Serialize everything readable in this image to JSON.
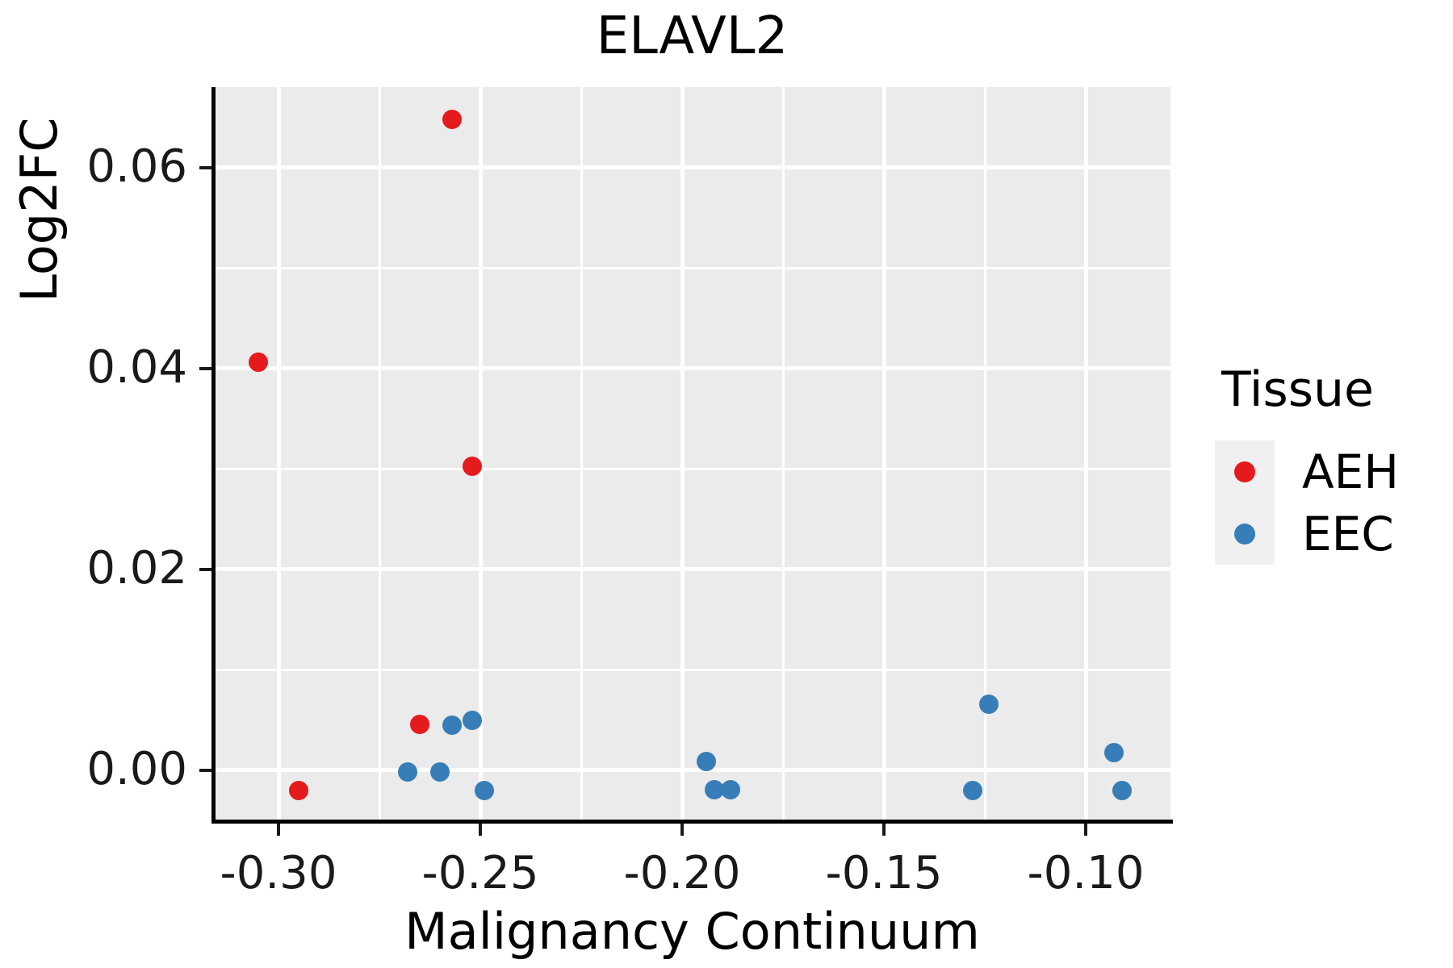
{
  "title": "ELAVL2",
  "chart_data": {
    "type": "scatter",
    "title": "ELAVL2",
    "xlabel": "Malignancy Continuum",
    "ylabel": "Log2FC",
    "xlim": [
      -0.316,
      -0.079
    ],
    "ylim": [
      -0.00506,
      0.068
    ],
    "grid": true,
    "x_ticks": [
      -0.3,
      -0.25,
      -0.2,
      -0.15,
      -0.1
    ],
    "x_tick_labels": [
      "-0.30",
      "-0.25",
      "-0.20",
      "-0.15",
      "-0.10"
    ],
    "x_minor_ticks": [
      -0.275,
      -0.225,
      -0.175,
      -0.125
    ],
    "y_ticks": [
      0.0,
      0.02,
      0.04,
      0.06
    ],
    "y_tick_labels": [
      "0.00",
      "0.02",
      "0.04",
      "0.06"
    ],
    "y_minor_ticks": [
      0.01,
      0.03,
      0.05
    ],
    "legend_position": "right",
    "legend_title": "Tissue",
    "series": [
      {
        "name": "AEH",
        "color": "#E41A1C",
        "points": [
          [
            -0.257,
            0.0648
          ],
          [
            -0.305,
            0.0406
          ],
          [
            -0.252,
            0.0303
          ],
          [
            -0.265,
            0.0046
          ],
          [
            -0.295,
            -0.002
          ]
        ]
      },
      {
        "name": "EEC",
        "color": "#377EB8",
        "points": [
          [
            -0.257,
            0.0045
          ],
          [
            -0.252,
            0.005
          ],
          [
            -0.268,
            -0.0002
          ],
          [
            -0.26,
            -0.0002
          ],
          [
            -0.249,
            -0.002
          ],
          [
            -0.194,
            0.0009
          ],
          [
            -0.192,
            -0.0019
          ],
          [
            -0.188,
            -0.0019
          ],
          [
            -0.124,
            0.0066
          ],
          [
            -0.128,
            -0.002
          ],
          [
            -0.093,
            0.0018
          ],
          [
            -0.091,
            -0.002
          ]
        ]
      }
    ],
    "colors": {
      "panel_bg": "#EBEBEB",
      "grid": "#FFFFFF",
      "axis": "#000000",
      "legend_key_bg": "#F0F0F0",
      "text": "#000000"
    }
  },
  "legend": {
    "title": "Tissue",
    "items": [
      {
        "label": "AEH",
        "color": "#E41A1C"
      },
      {
        "label": "EEC",
        "color": "#377EB8"
      }
    ]
  }
}
